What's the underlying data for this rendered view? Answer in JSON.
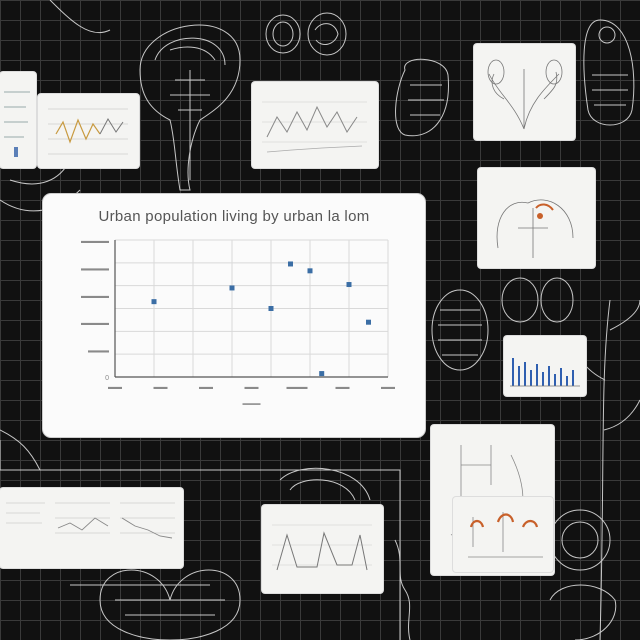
{
  "main_chart": {
    "title": "Urban population living by urban la lom",
    "y_ticks": [
      "▬▬▬▬",
      "▬▬▬▬",
      "▬▬▬▬",
      "▬▬▬▬",
      "▬▬▬",
      "0"
    ],
    "x_ticks": [
      "▬▬",
      "▬▬",
      "▬▬",
      "▬▬",
      "▬▬▬",
      "▬▬",
      "▬▬"
    ],
    "xlabel": "▬▬▬",
    "point_color": "#3b6ea5"
  },
  "chart_data": {
    "type": "scatter",
    "title": "Urban population living by urban la lom",
    "xlabel": "",
    "ylabel": "",
    "x": [
      1,
      3,
      4,
      4.5,
      5,
      5.3,
      6,
      6.5
    ],
    "y": [
      2.2,
      2.6,
      2.0,
      3.3,
      3.1,
      0.1,
      2.7,
      1.6
    ],
    "xlim": [
      0,
      7
    ],
    "ylim": [
      0,
      4
    ],
    "grid": true
  },
  "colors": {
    "background": "#111111",
    "grid": "#3a3a3a",
    "card": "#f4f4f2",
    "sketch": "#e8e8e8",
    "accent_orange": "#c8602a",
    "accent_blue": "#2f5fb0"
  }
}
